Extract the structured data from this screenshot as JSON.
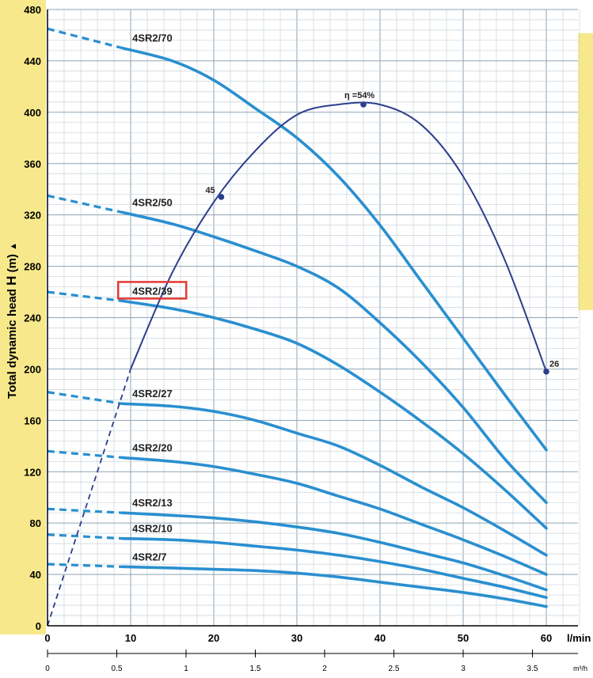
{
  "chart_data": {
    "type": "line",
    "ylabel_prefix": "Total dynamic head ",
    "ylabel_symbol": "H",
    "ylabel_suffix": " (m)",
    "ylabel_arrow": "▲",
    "xlabel": "l/min",
    "xlabel2": "m³/h",
    "xlim": [
      0,
      60
    ],
    "ylim": [
      0,
      480
    ],
    "x_ticks": [
      0,
      10,
      20,
      30,
      40,
      50,
      60
    ],
    "y_ticks": [
      0,
      40,
      80,
      120,
      160,
      200,
      240,
      280,
      320,
      360,
      400,
      440,
      480
    ],
    "x2_ticks": [
      {
        "label": "0",
        "x": 0
      },
      {
        "label": "0.5",
        "x": 8.333
      },
      {
        "label": "1",
        "x": 16.667
      },
      {
        "label": "1.5",
        "x": 25
      },
      {
        "label": "2",
        "x": 33.333
      },
      {
        "label": "2.5",
        "x": 41.667
      },
      {
        "label": "3",
        "x": 50
      },
      {
        "label": "3.5",
        "x": 58.333
      }
    ],
    "grid": true,
    "series": [
      {
        "name": "4SR2/70",
        "x": [
          0,
          9,
          15,
          20,
          25,
          30,
          35,
          40,
          45,
          50,
          55,
          60
        ],
        "y": [
          465,
          450,
          440,
          425,
          403,
          380,
          350,
          312,
          268,
          224,
          180,
          137
        ]
      },
      {
        "name": "4SR2/50",
        "x": [
          0,
          9,
          15,
          20,
          25,
          30,
          35,
          40,
          45,
          50,
          55,
          60
        ],
        "y": [
          335,
          322,
          313,
          303,
          292,
          280,
          263,
          236,
          205,
          170,
          130,
          96
        ]
      },
      {
        "name": "4SR2/39",
        "x": [
          0,
          9,
          15,
          20,
          25,
          30,
          35,
          40,
          45,
          50,
          55,
          60
        ],
        "y": [
          260,
          253,
          247,
          240,
          231,
          220,
          203,
          182,
          159,
          134,
          106,
          76
        ]
      },
      {
        "name": "4SR2/27",
        "x": [
          0,
          9,
          15,
          20,
          25,
          30,
          35,
          40,
          45,
          50,
          55,
          60
        ],
        "y": [
          182,
          173,
          171,
          167,
          160,
          150,
          140,
          125,
          108,
          92,
          74,
          55
        ]
      },
      {
        "name": "4SR2/20",
        "x": [
          0,
          9,
          15,
          20,
          25,
          30,
          35,
          40,
          45,
          50,
          55,
          60
        ],
        "y": [
          136,
          131,
          128,
          124,
          118,
          111,
          101,
          91,
          79,
          67,
          54,
          40
        ]
      },
      {
        "name": "4SR2/13",
        "x": [
          0,
          9,
          15,
          20,
          25,
          30,
          35,
          40,
          45,
          50,
          55,
          60
        ],
        "y": [
          91,
          88,
          86,
          84,
          81,
          77,
          72,
          65,
          57,
          49,
          39,
          28
        ]
      },
      {
        "name": "4SR2/10",
        "x": [
          0,
          9,
          15,
          20,
          25,
          30,
          35,
          40,
          45,
          50,
          55,
          60
        ],
        "y": [
          71,
          68,
          67,
          65,
          62,
          59,
          55,
          50,
          44,
          37,
          30,
          22
        ]
      },
      {
        "name": "4SR2/7",
        "x": [
          0,
          9,
          15,
          20,
          25,
          30,
          35,
          40,
          45,
          50,
          55,
          60
        ],
        "y": [
          48,
          46,
          45,
          44,
          43,
          41,
          38,
          34,
          30,
          26,
          21,
          15
        ]
      }
    ],
    "efficiency_curve": {
      "x": [
        0,
        5,
        10,
        15,
        20,
        25,
        30,
        35,
        40,
        45,
        50,
        55,
        60
      ],
      "y": [
        0,
        100,
        200,
        275,
        330,
        370,
        398,
        406,
        406,
        390,
        350,
        285,
        198
      ]
    },
    "efficiency_points": [
      {
        "label": "45",
        "x": 20.9,
        "y": 334
      },
      {
        "label": "η =54%",
        "x": 38,
        "y": 406
      },
      {
        "label": "26",
        "x": 60,
        "y": 198
      }
    ],
    "highlighted_series": "4SR2/39"
  }
}
